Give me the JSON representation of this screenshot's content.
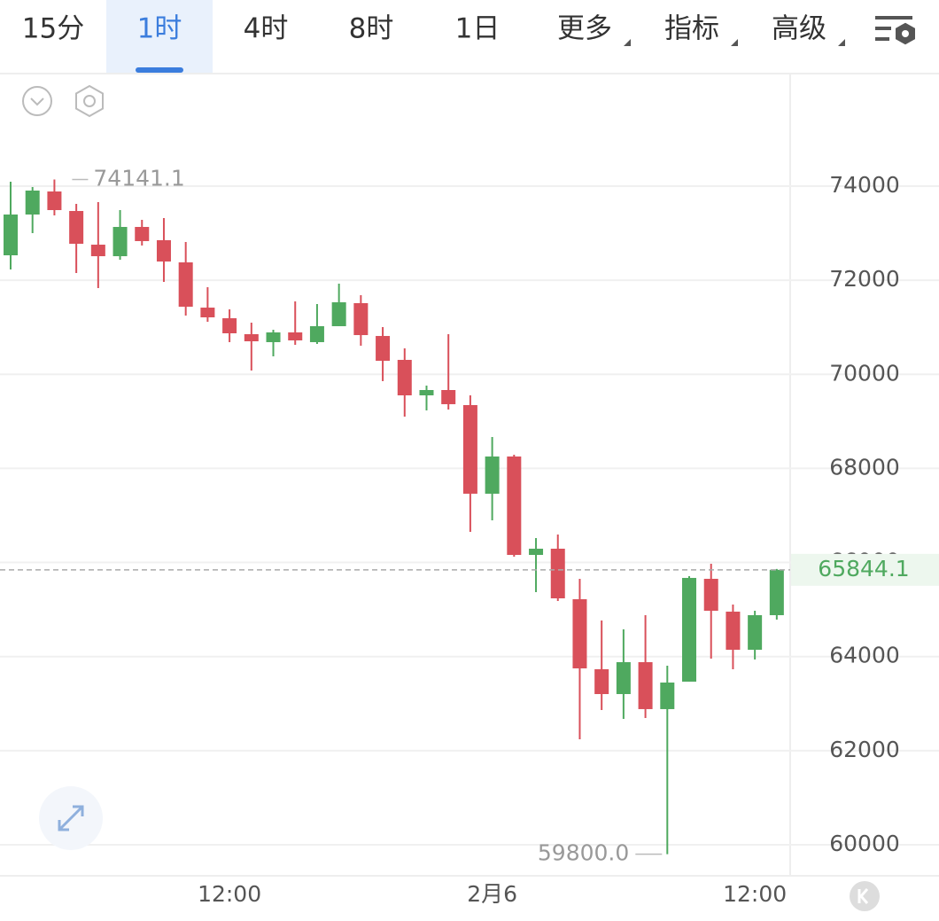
{
  "toolbar": {
    "tabs": [
      "15分",
      "1时",
      "4时",
      "8时",
      "1日",
      "更多",
      "指标",
      "高级"
    ],
    "active": 1
  },
  "chart_data": {
    "type": "candlestick",
    "categories": [
      null,
      null,
      null,
      null,
      null,
      null,
      null,
      null,
      null,
      null,
      "12:00",
      null,
      null,
      null,
      null,
      null,
      null,
      null,
      null,
      null,
      null,
      null,
      "2月6",
      null,
      null,
      null,
      null,
      null,
      null,
      null,
      null,
      null,
      null,
      null,
      "12:00",
      null
    ],
    "open": [
      72530,
      73397,
      73887,
      73472,
      72756,
      72511,
      73133,
      72851,
      72380,
      71418,
      71192,
      70853,
      70684,
      70891,
      70684,
      71023,
      71513,
      70815,
      70307,
      69553,
      69666,
      69346,
      67462,
      68253,
      66161,
      66293,
      65219,
      63731,
      63203,
      63881,
      62883,
      63467,
      65653,
      64955,
      64145,
      64880
    ],
    "high": [
      74094,
      73981,
      74141.1,
      73623,
      73661,
      73491,
      73284,
      73322,
      72813,
      71852,
      71381,
      71098,
      70947,
      71550,
      71494,
      71927,
      71682,
      71004,
      70552,
      69760,
      70853,
      69553,
      68667,
      68291,
      66519,
      66594,
      65653,
      64767,
      64579,
      64880,
      63806,
      65709,
      65973,
      65106,
      64974,
      65862
    ],
    "low": [
      72229,
      73001,
      73378,
      72153,
      71833,
      72436,
      72738,
      71965,
      71249,
      71117,
      70684,
      70081,
      70382,
      70627,
      70646,
      71023,
      70608,
      69855,
      69101,
      69233,
      69252,
      66651,
      66896,
      66124,
      65370,
      65181,
      62242,
      62864,
      62675,
      62694,
      59800,
      63467,
      63956,
      63731,
      63938,
      64786
    ],
    "close": [
      73397,
      73906,
      73491,
      72775,
      72511,
      73133,
      72832,
      72398,
      71437,
      71211,
      70872,
      70702,
      70891,
      70721,
      71023,
      71531,
      70834,
      70288,
      69553,
      69666,
      69365,
      67462,
      68253,
      66161,
      66293,
      65238,
      63749,
      63203,
      63881,
      62883,
      63448,
      65672,
      64974,
      64145,
      64880,
      65844.1
    ],
    "up_color": "#4fa95f",
    "down_color": "#d9505a",
    "ylim": [
      59340,
      76393
    ],
    "yticks": [
      60000,
      62000,
      64000,
      66000,
      68000,
      70000,
      72000,
      74000
    ],
    "grid": true,
    "annotations": [
      {
        "value": 74141.1,
        "label": "74141.1"
      },
      {
        "value": 59800,
        "label": "59800.0"
      }
    ],
    "last_price": {
      "value": 65844.1,
      "label": "65844.1"
    }
  }
}
